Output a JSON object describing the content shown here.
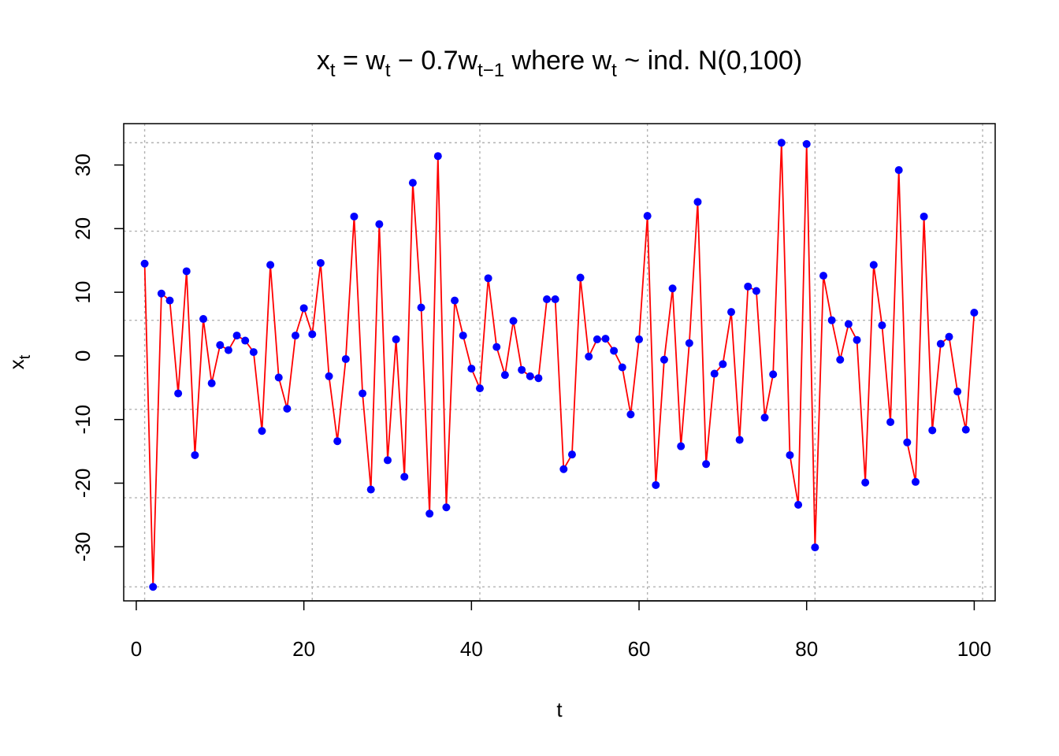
{
  "chart_data": {
    "type": "line",
    "title": {
      "x": "x",
      "x_sub": "t",
      "eq": " = w",
      "w_sub1": "t",
      "minus": " − 0.7w",
      "w_sub2": "t−1",
      "where": " where w",
      "w_sub3": "t",
      "tail": " ~ ind. N(0,100)"
    },
    "xlabel": "t",
    "ylabel": {
      "base": "x",
      "sub": "t"
    },
    "xlim": [
      -1.5,
      102.5
    ],
    "ylim": [
      -38.5,
      36.5
    ],
    "xticks": [
      0,
      20,
      40,
      60,
      80,
      100
    ],
    "xtick_labels": [
      "0",
      "20",
      "40",
      "60",
      "80",
      "100"
    ],
    "yticks": [
      -30,
      -20,
      -10,
      0,
      10,
      20,
      30
    ],
    "ytick_labels": [
      "-30",
      "-20",
      "-10",
      "0",
      "10",
      "20",
      "30"
    ],
    "grid_x": [
      1,
      21,
      41,
      61,
      81,
      101
    ],
    "grid_y": [
      -36.3,
      -22.3,
      -8.4,
      5.6,
      19.6,
      33.5
    ],
    "grid": true,
    "line_color": "#ff0000",
    "point_color": "#0000ff",
    "series": [
      {
        "x": [
          1,
          2,
          3,
          4,
          5,
          6,
          7,
          8,
          9,
          10,
          11,
          12,
          13,
          14,
          15,
          16,
          17,
          18,
          19,
          20,
          21,
          22,
          23,
          24,
          25,
          26,
          27,
          28,
          29,
          30,
          31,
          32,
          33,
          34,
          35,
          36,
          37,
          38,
          39,
          40,
          41,
          42,
          43,
          44,
          45,
          46,
          47,
          48,
          49,
          50,
          51,
          52,
          53,
          54,
          55,
          56,
          57,
          58,
          59,
          60,
          61,
          62,
          63,
          64,
          65,
          66,
          67,
          68,
          69,
          70,
          71,
          72,
          73,
          74,
          75,
          76,
          77,
          78,
          79,
          80,
          81,
          82,
          83,
          84,
          85,
          86,
          87,
          88,
          89,
          90,
          91,
          92,
          93,
          94,
          95,
          96,
          97,
          98,
          99,
          100
        ],
        "values": [
          14.5,
          -36.3,
          9.8,
          8.7,
          -5.9,
          13.3,
          -15.6,
          5.8,
          -4.3,
          1.7,
          0.9,
          3.2,
          2.4,
          0.6,
          -11.8,
          14.3,
          -3.4,
          -8.3,
          3.2,
          7.5,
          3.4,
          14.6,
          -3.2,
          -13.4,
          -0.5,
          21.9,
          -5.9,
          -21.0,
          20.7,
          -16.4,
          2.6,
          -19.0,
          27.2,
          7.6,
          -24.8,
          31.4,
          -23.8,
          8.7,
          3.2,
          -2.0,
          -5.1,
          12.2,
          1.4,
          -3.0,
          5.5,
          -2.2,
          -3.2,
          -3.5,
          8.9,
          8.9,
          -17.8,
          -15.5,
          12.3,
          -0.1,
          2.6,
          2.7,
          0.8,
          -1.8,
          -9.2,
          2.6,
          22.0,
          -20.3,
          -0.6,
          10.6,
          -14.2,
          2.0,
          24.2,
          -17.0,
          -2.8,
          -1.3,
          6.9,
          -13.2,
          10.9,
          10.2,
          -9.7,
          -2.9,
          33.5,
          -15.6,
          -23.4,
          33.3,
          -30.1,
          12.6,
          5.6,
          -0.6,
          5.0,
          2.5,
          -19.9,
          14.3,
          4.8,
          -10.4,
          29.2,
          -13.6,
          -19.8,
          21.9,
          -11.7,
          1.9,
          3.0,
          -5.6,
          -11.6,
          6.8
        ]
      }
    ]
  }
}
